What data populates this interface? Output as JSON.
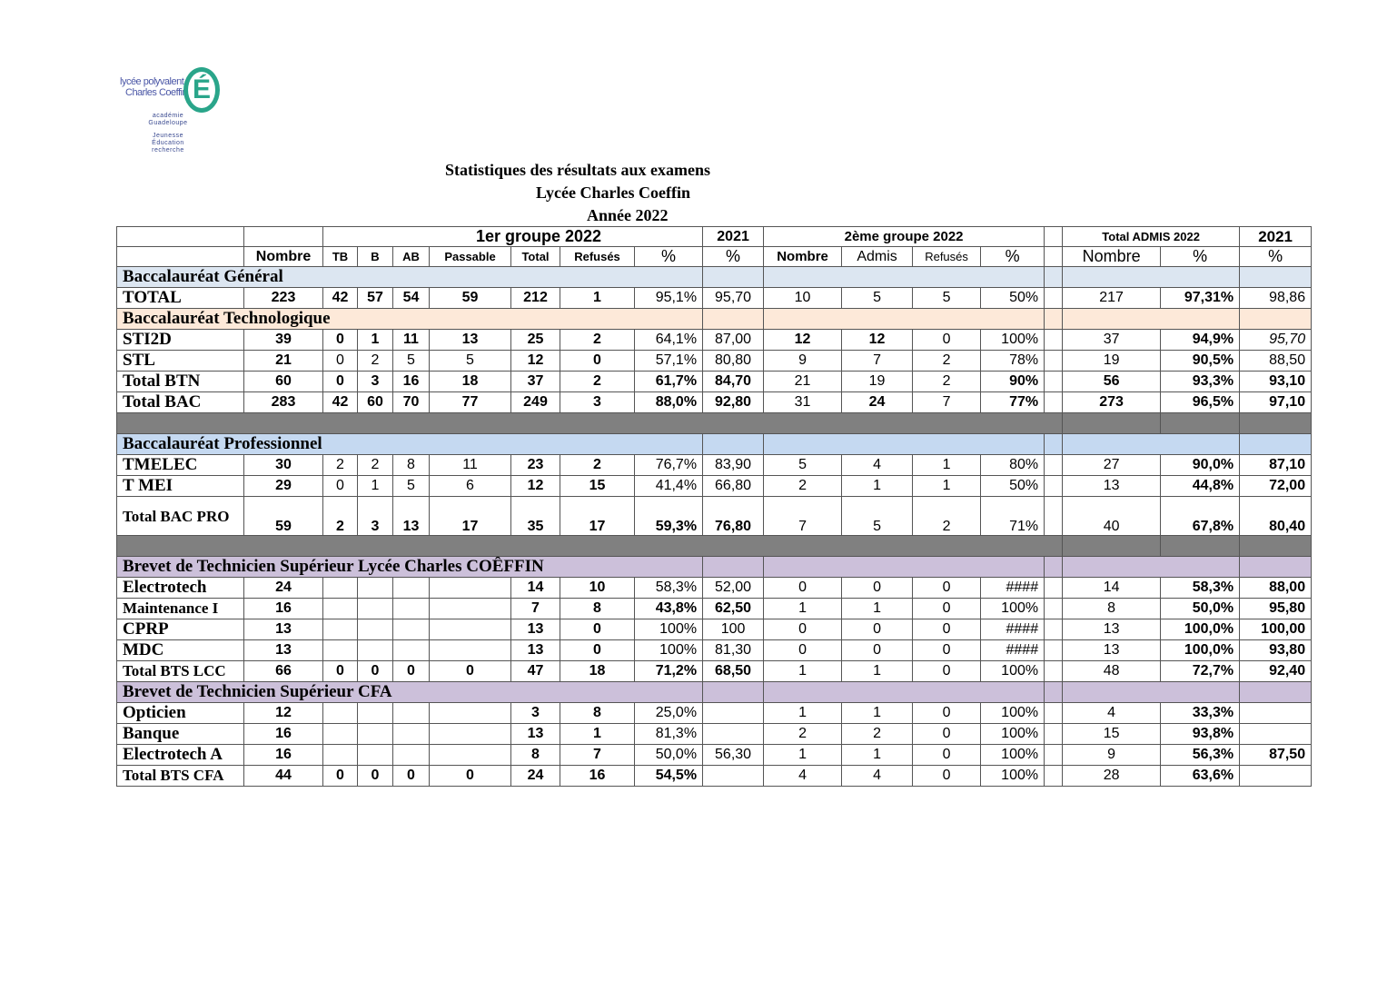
{
  "logo": {
    "line1": "lycée polyvalent",
    "line2": "Charles Coeffin",
    "letter": "É",
    "sub1": "académie",
    "sub2": "Guadeloupe",
    "sub3": "Jeunesse",
    "sub4": "Éducation",
    "sub5": "recherche"
  },
  "titles": [
    "Statistiques des résultats aux examens",
    "Lycée Charles Coeffin",
    "Année 2022"
  ],
  "header": {
    "group1": "1er groupe 2022",
    "y2021": "2021",
    "group2": "2ème groupe 2022",
    "total_admis": "Total ADMIS 2022",
    "y2021b": "2021",
    "cols": [
      "Nombre",
      "TB",
      "B",
      "AB",
      "Passable",
      "Total",
      "Refusés",
      "%",
      "%",
      "Nombre",
      "Admis",
      "Refusés",
      "%",
      "",
      "Nombre",
      "%",
      "%"
    ]
  },
  "colors": {
    "general": "#dce6f1",
    "techno": "#fde9d9",
    "pro": "#c5d9f1",
    "bts": "#ccc0da",
    "separator": "#808080"
  },
  "rows": [
    {
      "type": "section",
      "label": "Baccalauréat Général",
      "color": "general"
    },
    {
      "type": "data",
      "label": "TOTAL",
      "cells": [
        "223",
        "42",
        "57",
        "54",
        "59",
        "212",
        "1",
        "95,1%",
        "95,70",
        "10",
        "5",
        "5",
        "50%",
        "",
        "217",
        "97,31%",
        "98,86"
      ]
    },
    {
      "type": "section",
      "label": "Baccalauréat Technologique",
      "color": "techno"
    },
    {
      "type": "data",
      "label": "STI2D",
      "cells": [
        "39",
        "0",
        "1",
        "11",
        "13",
        "25",
        "2",
        "64,1%",
        "87,00",
        "12",
        "12",
        "0",
        "100%",
        "",
        "37",
        "94,9%",
        "95,70"
      ]
    },
    {
      "type": "data",
      "label": "STL",
      "cells": [
        "21",
        "0",
        "2",
        "5",
        "5",
        "12",
        "0",
        "57,1%",
        "80,80",
        "9",
        "7",
        "2",
        "78%",
        "",
        "19",
        "90,5%",
        "88,50"
      ]
    },
    {
      "type": "data",
      "label": "Total BTN",
      "cells": [
        "60",
        "0",
        "3",
        "16",
        "18",
        "37",
        "2",
        "61,7%",
        "84,70",
        "21",
        "19",
        "2",
        "90%",
        "",
        "56",
        "93,3%",
        "93,10"
      ]
    },
    {
      "type": "data",
      "label": "Total BAC",
      "cells": [
        "283",
        "42",
        "60",
        "70",
        "77",
        "249",
        "3",
        "88,0%",
        "92,80",
        "31",
        "24",
        "7",
        "77%",
        "",
        "273",
        "96,5%",
        "97,10"
      ]
    },
    {
      "type": "dark"
    },
    {
      "type": "section",
      "label": "Baccalauréat Professionnel",
      "color": "pro"
    },
    {
      "type": "data",
      "label": "TMELEC",
      "cells": [
        "30",
        "2",
        "2",
        "8",
        "11",
        "23",
        "2",
        "76,7%",
        "83,90",
        "5",
        "4",
        "1",
        "80%",
        "",
        "27",
        "90,0%",
        "87,10"
      ]
    },
    {
      "type": "data",
      "label": "T MEI",
      "cells": [
        "29",
        "0",
        "1",
        "5",
        "6",
        "12",
        "15",
        "41,4%",
        "66,80",
        "2",
        "1",
        "1",
        "50%",
        "",
        "13",
        "44,8%",
        "72,00"
      ]
    },
    {
      "type": "data",
      "label": "Total BAC PRO",
      "cells": [
        "59",
        "2",
        "3",
        "13",
        "17",
        "35",
        "17",
        "59,3%",
        "76,80",
        "7",
        "5",
        "2",
        "71%",
        "",
        "40",
        "67,8%",
        "80,40"
      ]
    },
    {
      "type": "dark"
    },
    {
      "type": "section",
      "label": "Brevet de Technicien Supérieur Lycée Charles COÊFFIN",
      "color": "bts"
    },
    {
      "type": "data",
      "label": "Electrotech",
      "cells": [
        "24",
        "",
        "",
        "",
        "",
        "14",
        "10",
        "58,3%",
        "52,00",
        "0",
        "0",
        "0",
        "####",
        "",
        "14",
        "58,3%",
        "88,00"
      ]
    },
    {
      "type": "data",
      "label": "Maintenance I",
      "cells": [
        "16",
        "",
        "",
        "",
        "",
        "7",
        "8",
        "43,8%",
        "62,50",
        "1",
        "1",
        "0",
        "100%",
        "",
        "8",
        "50,0%",
        "95,80"
      ]
    },
    {
      "type": "data",
      "label": "CPRP",
      "cells": [
        "13",
        "",
        "",
        "",
        "",
        "13",
        "0",
        "100%",
        "100",
        "0",
        "0",
        "0",
        "####",
        "",
        "13",
        "100,0%",
        "100,00"
      ]
    },
    {
      "type": "data",
      "label": "MDC",
      "cells": [
        "13",
        "",
        "",
        "",
        "",
        "13",
        "0",
        "100%",
        "81,30",
        "0",
        "0",
        "0",
        "####",
        "",
        "13",
        "100,0%",
        "93,80"
      ]
    },
    {
      "type": "data",
      "label": "Total BTS LCC",
      "cells": [
        "66",
        "0",
        "0",
        "0",
        "0",
        "47",
        "18",
        "71,2%",
        "68,50",
        "1",
        "1",
        "0",
        "100%",
        "",
        "48",
        "72,7%",
        "92,40"
      ]
    },
    {
      "type": "section",
      "label": "Brevet de Technicien Supérieur CFA",
      "color": "bts"
    },
    {
      "type": "data",
      "label": "Opticien",
      "cells": [
        "12",
        "",
        "",
        "",
        "",
        "3",
        "8",
        "25,0%",
        "",
        "1",
        "1",
        "0",
        "100%",
        "",
        "4",
        "33,3%",
        ""
      ]
    },
    {
      "type": "data",
      "label": "Banque",
      "cells": [
        "16",
        "",
        "",
        "",
        "",
        "13",
        "1",
        "81,3%",
        "",
        "2",
        "2",
        "0",
        "100%",
        "",
        "15",
        "93,8%",
        ""
      ]
    },
    {
      "type": "data",
      "label": "Electrotech A",
      "cells": [
        "16",
        "",
        "",
        "",
        "",
        "8",
        "7",
        "50,0%",
        "56,30",
        "1",
        "1",
        "0",
        "100%",
        "",
        "9",
        "56,3%",
        "87,50"
      ]
    },
    {
      "type": "data",
      "label": "Total BTS CFA",
      "cells": [
        "44",
        "0",
        "0",
        "0",
        "0",
        "24",
        "16",
        "54,5%",
        "",
        "4",
        "4",
        "0",
        "100%",
        "",
        "28",
        "63,6%",
        ""
      ]
    }
  ]
}
